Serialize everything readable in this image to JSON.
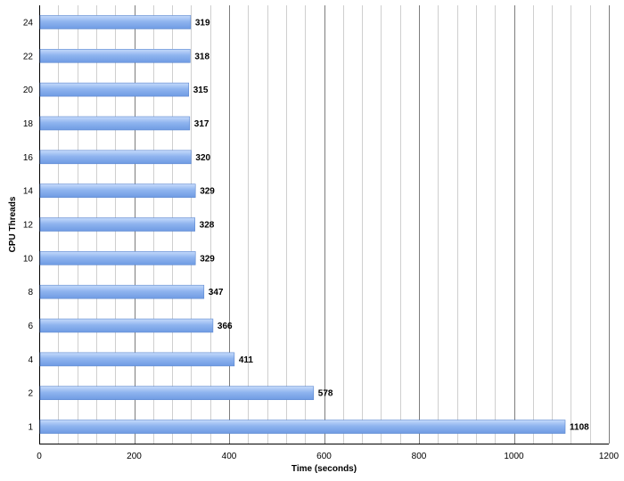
{
  "chart_data": {
    "type": "bar",
    "orientation": "horizontal",
    "title": "",
    "xlabel": "Time (seconds)",
    "ylabel": "CPU Threads",
    "categories": [
      "1",
      "2",
      "4",
      "6",
      "8",
      "10",
      "12",
      "14",
      "16",
      "18",
      "20",
      "22",
      "24"
    ],
    "values": [
      1108,
      578,
      411,
      366,
      347,
      329,
      328,
      329,
      320,
      317,
      315,
      318,
      319
    ],
    "xlim": [
      0,
      1200
    ],
    "xticks": [
      0,
      200,
      400,
      600,
      800,
      1000,
      1200
    ],
    "x_minor_step": 40,
    "grid": "vertical",
    "legend": "none",
    "data_labels": true,
    "colors": {
      "bar_light": "#c6dbfb",
      "bar_mid": "#8fb4ef",
      "bar_dark": "#6f9be3",
      "bar_edge": "#5a86cf",
      "major_grid": "#7d7d7d",
      "minor_grid": "#cfcfcf"
    }
  }
}
